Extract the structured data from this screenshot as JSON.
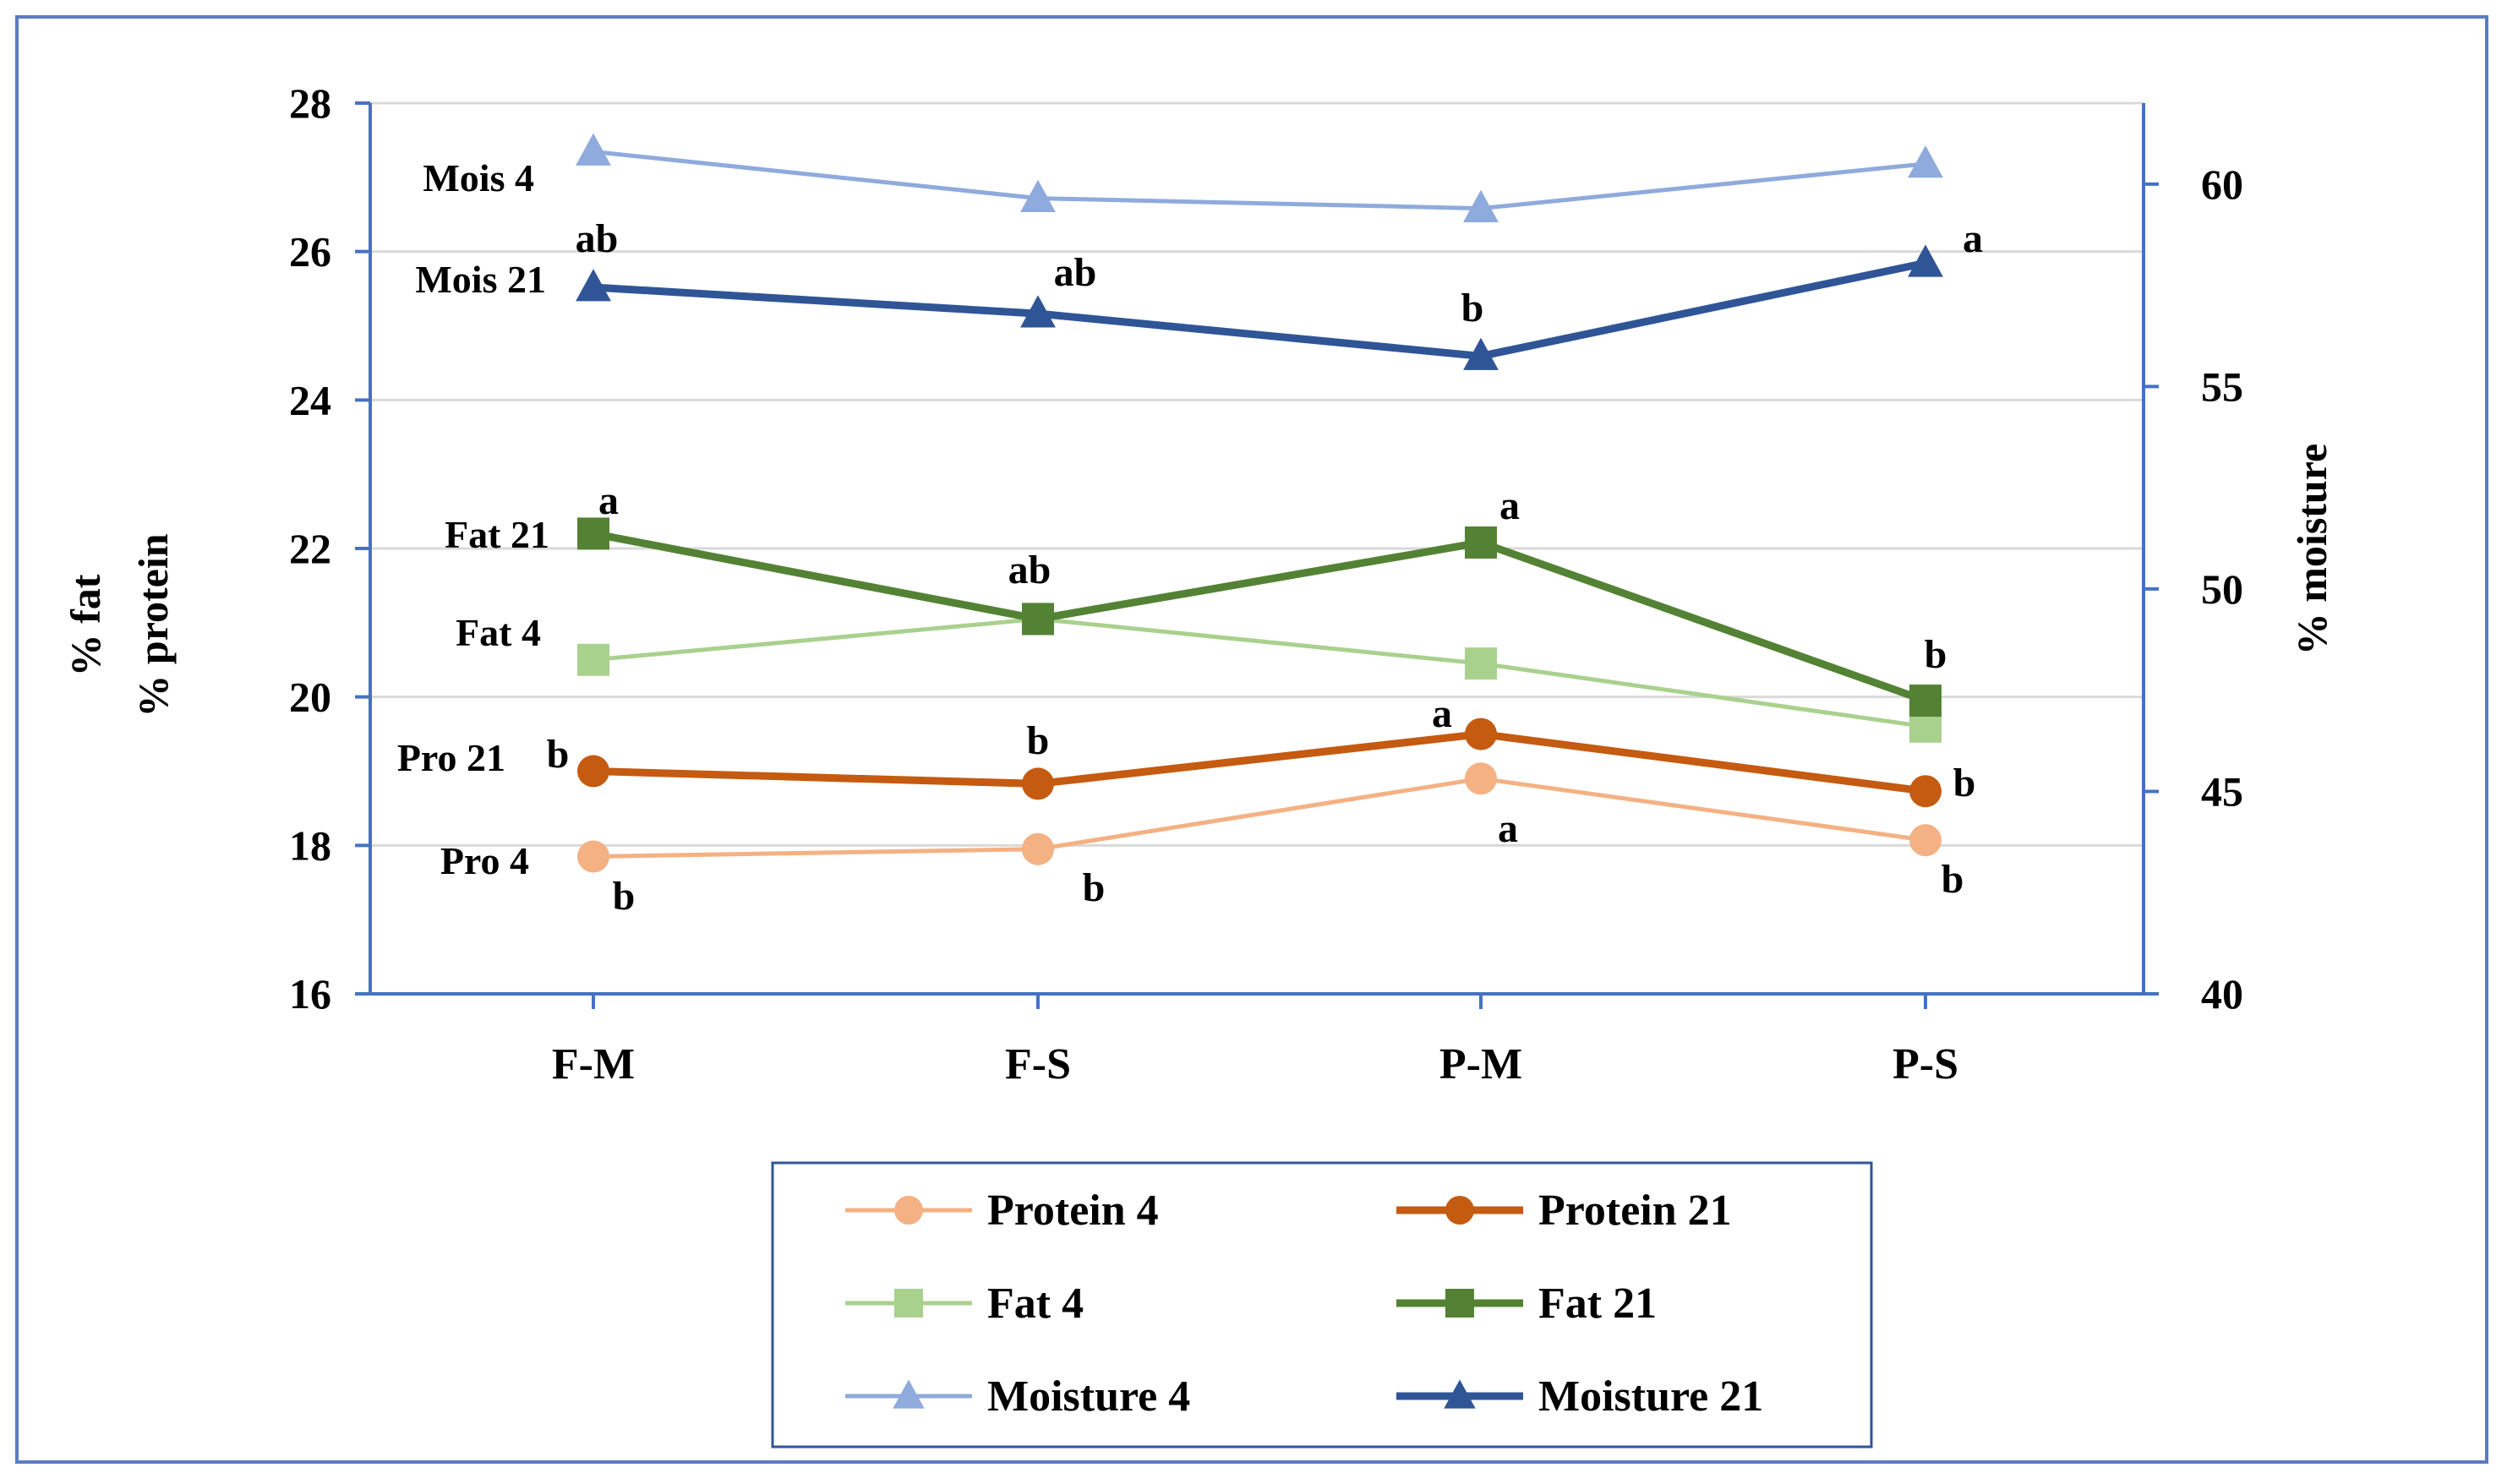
{
  "chart_data": {
    "type": "line",
    "categories": [
      "F-M",
      "F-S",
      "P-M",
      "P-S"
    ],
    "y_left": {
      "label_lines": [
        "% fat",
        "% protein"
      ],
      "lim": [
        16,
        28
      ],
      "ticks": [
        16,
        18,
        20,
        22,
        24,
        26,
        28
      ]
    },
    "y_right": {
      "label": "% moisture",
      "lim": [
        40,
        62
      ],
      "ticks": [
        40,
        45,
        50,
        55,
        60
      ]
    },
    "grid": true,
    "legend_position": "bottom",
    "series": [
      {
        "name": "Protein 4",
        "axis": "left",
        "marker": "circle",
        "color": "#f4b183",
        "width": 5,
        "values": [
          17.85,
          17.95,
          18.9,
          18.07
        ],
        "tag": "Pro 4",
        "letters": [
          "b",
          "b",
          "a",
          "b"
        ]
      },
      {
        "name": "Protein 21",
        "axis": "left",
        "marker": "circle",
        "color": "#c55a11",
        "width": 9,
        "values": [
          19.0,
          18.83,
          19.5,
          18.73
        ],
        "tag": "Pro 21",
        "letters": [
          "b",
          "b",
          "a",
          "b"
        ]
      },
      {
        "name": "Fat 4",
        "axis": "left",
        "marker": "square",
        "color": "#a9d18e",
        "width": 5,
        "values": [
          20.5,
          21.05,
          20.45,
          19.6
        ],
        "tag": "Fat 4",
        "letters": []
      },
      {
        "name": "Fat 21",
        "axis": "left",
        "marker": "square",
        "color": "#548235",
        "width": 9,
        "values": [
          22.2,
          21.05,
          22.08,
          19.95
        ],
        "tag": "Fat 21",
        "letters": [
          "a",
          "ab",
          "a",
          "b"
        ]
      },
      {
        "name": "Moisture 4",
        "axis": "right",
        "marker": "triangle",
        "color": "#8faadc",
        "width": 5,
        "values": [
          60.8,
          59.65,
          59.4,
          60.5
        ],
        "tag": "Mois 4",
        "letters": []
      },
      {
        "name": "Moisture 21",
        "axis": "right",
        "marker": "triangle",
        "color": "#2f5597",
        "width": 9,
        "values": [
          57.45,
          56.8,
          55.75,
          58.05
        ],
        "tag": "Mois 21",
        "letters": [
          "ab",
          "ab",
          "b",
          "a"
        ]
      }
    ]
  }
}
